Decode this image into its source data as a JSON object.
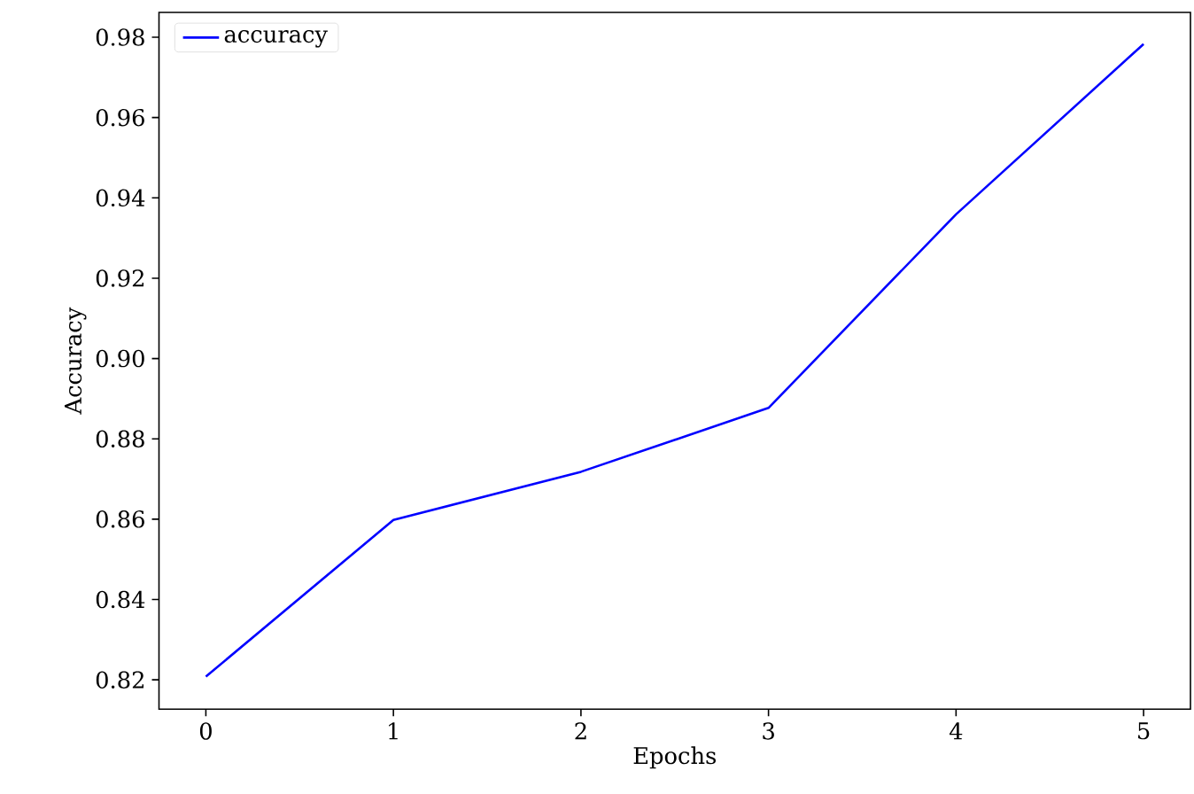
{
  "chart_data": {
    "type": "line",
    "xlabel": "Epochs",
    "ylabel": "Accuracy",
    "x": [
      0,
      1,
      2,
      3,
      4,
      5
    ],
    "series": [
      {
        "name": "accuracy",
        "color": "#0000ff",
        "values": [
          0.8208,
          0.8598,
          0.8718,
          0.8877,
          0.9359,
          0.9783
        ]
      }
    ],
    "xlim": [
      -0.25,
      5.25
    ],
    "ylim": [
      0.8127,
      0.9862
    ],
    "xticks": [
      0,
      1,
      2,
      3,
      4,
      5
    ],
    "yticks": [
      {
        "value": 0.82,
        "label": "0.82"
      },
      {
        "value": 0.84,
        "label": "0.84"
      },
      {
        "value": 0.86,
        "label": "0.86"
      },
      {
        "value": 0.88,
        "label": "0.88"
      },
      {
        "value": 0.9,
        "label": "0.90"
      },
      {
        "value": 0.92,
        "label": "0.92"
      },
      {
        "value": 0.94,
        "label": "0.94"
      },
      {
        "value": 0.96,
        "label": "0.96"
      },
      {
        "value": 0.98,
        "label": "0.98"
      }
    ],
    "legend": "top left",
    "grid": false,
    "marker": "none",
    "line_style": "solid"
  }
}
